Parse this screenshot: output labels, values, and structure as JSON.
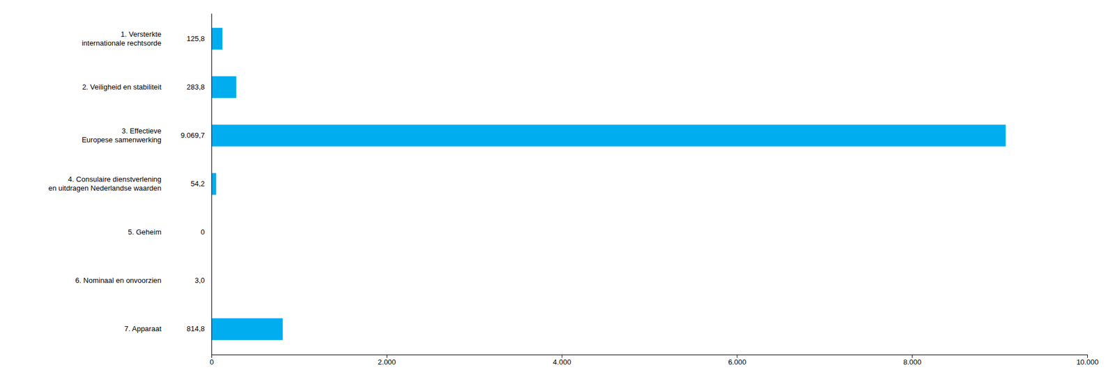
{
  "chart_data": {
    "type": "bar",
    "orientation": "horizontal",
    "categories": [
      "1. Versterkte\ninternationale rechtsorde",
      "2. Veiligheid en stabiliteit",
      "3. Effectieve\nEuropese samenwerking",
      "4. Consulaire dienstverlening\nen uitdragen Nederlandse waarden",
      "5. Geheim",
      "6. Nominaal en onvoorzien",
      "7. Apparaat"
    ],
    "values": [
      125.8,
      283.8,
      9069.7,
      54.2,
      0,
      3.0,
      814.8
    ],
    "value_labels": [
      "125,8",
      "283,8",
      "9.069,7",
      "54,2",
      "0",
      "3,0",
      "814,8"
    ],
    "data_labels": true,
    "color": "#00adef",
    "xlim": [
      0,
      10000
    ],
    "xticks": [
      0,
      {
        "value": 2000,
        "label": "2.000"
      },
      {
        "value": 4000,
        "label": "4.000"
      },
      {
        "value": 6000,
        "label": "6.000"
      },
      {
        "value": 8000,
        "label": "8.000"
      },
      {
        "value": 10000,
        "label": "10.000"
      }
    ],
    "grid": false
  }
}
